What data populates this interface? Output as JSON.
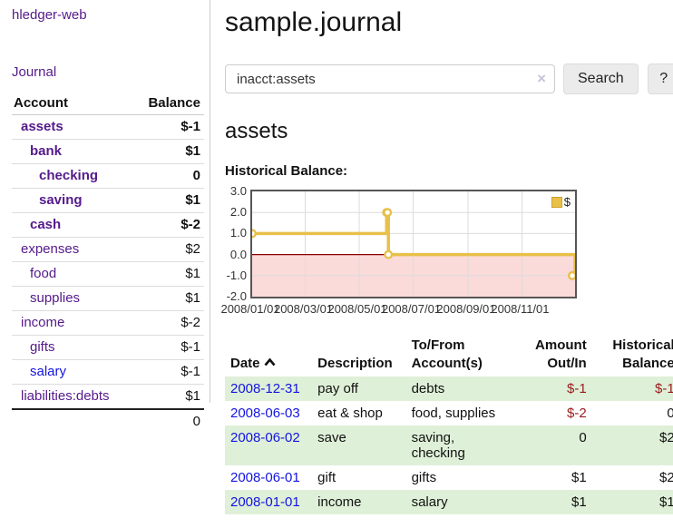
{
  "sidebar": {
    "app_title": "hledger-web",
    "journal_label": "Journal",
    "accounts_table": {
      "headers": {
        "account": "Account",
        "balance": "Balance"
      },
      "rows": [
        {
          "name": "assets",
          "depth": 1,
          "bold": true,
          "balance": "$-1",
          "balance_class": "neg-strong"
        },
        {
          "name": "bank",
          "depth": 2,
          "bold": true,
          "balance": "$1",
          "balance_class": null
        },
        {
          "name": "checking",
          "depth": 3,
          "bold": true,
          "balance": "0",
          "balance_class": null
        },
        {
          "name": "saving",
          "depth": 3,
          "bold": true,
          "balance": "$1",
          "balance_class": null
        },
        {
          "name": "cash",
          "depth": 2,
          "bold": true,
          "balance": "$-2",
          "balance_class": "neg-strong"
        },
        {
          "name": "expenses",
          "depth": 1,
          "bold": false,
          "balance": "$2",
          "balance_class": null
        },
        {
          "name": "food",
          "depth": 2,
          "bold": false,
          "balance": "$1",
          "balance_class": null
        },
        {
          "name": "supplies",
          "depth": 2,
          "bold": false,
          "balance": "$1",
          "balance_class": null
        },
        {
          "name": "income",
          "depth": 1,
          "bold": false,
          "balance": "$-2",
          "balance_class": "neg-soft"
        },
        {
          "name": "gifts",
          "depth": 2,
          "bold": false,
          "balance": "$-1",
          "balance_class": "neg-soft"
        },
        {
          "name": "salary",
          "depth": 2,
          "bold": false,
          "balance": "$-1",
          "balance_class": "neg-soft",
          "link": "blue"
        },
        {
          "name": "liabilities:debts",
          "depth": 1,
          "bold": false,
          "balance": "$1",
          "balance_class": null
        }
      ],
      "total": "0"
    }
  },
  "header": {
    "title": "sample.journal"
  },
  "search": {
    "query": "inacct:assets",
    "clear_icon": "×",
    "search_button": "Search",
    "help_button": "?"
  },
  "account_page": {
    "heading": "assets",
    "chart_label": "Historical Balance:"
  },
  "chart_data": {
    "type": "line",
    "style": "step",
    "title": "Historical Balance",
    "series": [
      {
        "name": "$",
        "color": "#e8c04a",
        "points": [
          {
            "date": "2008-01-01",
            "value": 1
          },
          {
            "date": "2008-06-01",
            "value": 2
          },
          {
            "date": "2008-06-02",
            "value": 2
          },
          {
            "date": "2008-06-03",
            "value": 0
          },
          {
            "date": "2008-12-31",
            "value": -1
          }
        ]
      }
    ],
    "x_range": [
      "2008-01-01",
      "2008-12-31"
    ],
    "x_ticks": [
      "2008/01/01",
      "2008/03/01",
      "2008/05/01",
      "2008/07/01",
      "2008/09/01",
      "2008/11/01"
    ],
    "y_ticks": [
      "3.0",
      "2.0",
      "1.0",
      "0.0",
      "-1.0",
      "-2.0"
    ],
    "ylim": [
      -2,
      3
    ],
    "grid": true,
    "legend": {
      "label": "$",
      "position": "top-right"
    },
    "negative_region_color": "#fbdada",
    "zero_line_color": "#8b0000",
    "grid_color": "#dcdcdc"
  },
  "register": {
    "headers": {
      "date": "Date",
      "description": "Description",
      "to_from": "To/From Account(s)",
      "amount": "Amount Out/In",
      "balance": "Historical Balance"
    },
    "rows": [
      {
        "date": "2008-12-31",
        "description": "pay off",
        "to_from": "debts",
        "amount": "$-1",
        "amount_neg": true,
        "balance": "$-1",
        "balance_neg": true,
        "striped": true
      },
      {
        "date": "2008-06-03",
        "description": "eat & shop",
        "to_from": "food, supplies",
        "amount": "$-2",
        "amount_neg": true,
        "balance": "0",
        "balance_neg": false,
        "striped": false
      },
      {
        "date": "2008-06-02",
        "description": "save",
        "to_from": "saving, checking",
        "amount": "0",
        "amount_neg": false,
        "balance": "$2",
        "balance_neg": false,
        "striped": true
      },
      {
        "date": "2008-06-01",
        "description": "gift",
        "to_from": "gifts",
        "amount": "$1",
        "amount_neg": false,
        "balance": "$2",
        "balance_neg": false,
        "striped": false
      },
      {
        "date": "2008-01-01",
        "description": "income",
        "to_from": "salary",
        "amount": "$1",
        "amount_neg": false,
        "balance": "$1",
        "balance_neg": false,
        "striped": true
      }
    ]
  },
  "colors": {
    "visited_link_purple": "#551a8b",
    "link_blue": "#1414e0",
    "negative_strong": "#961616",
    "negative_soft": "#c26e6e",
    "row_stripe_green": "#dff0d8",
    "series_gold": "#e8c04a"
  }
}
